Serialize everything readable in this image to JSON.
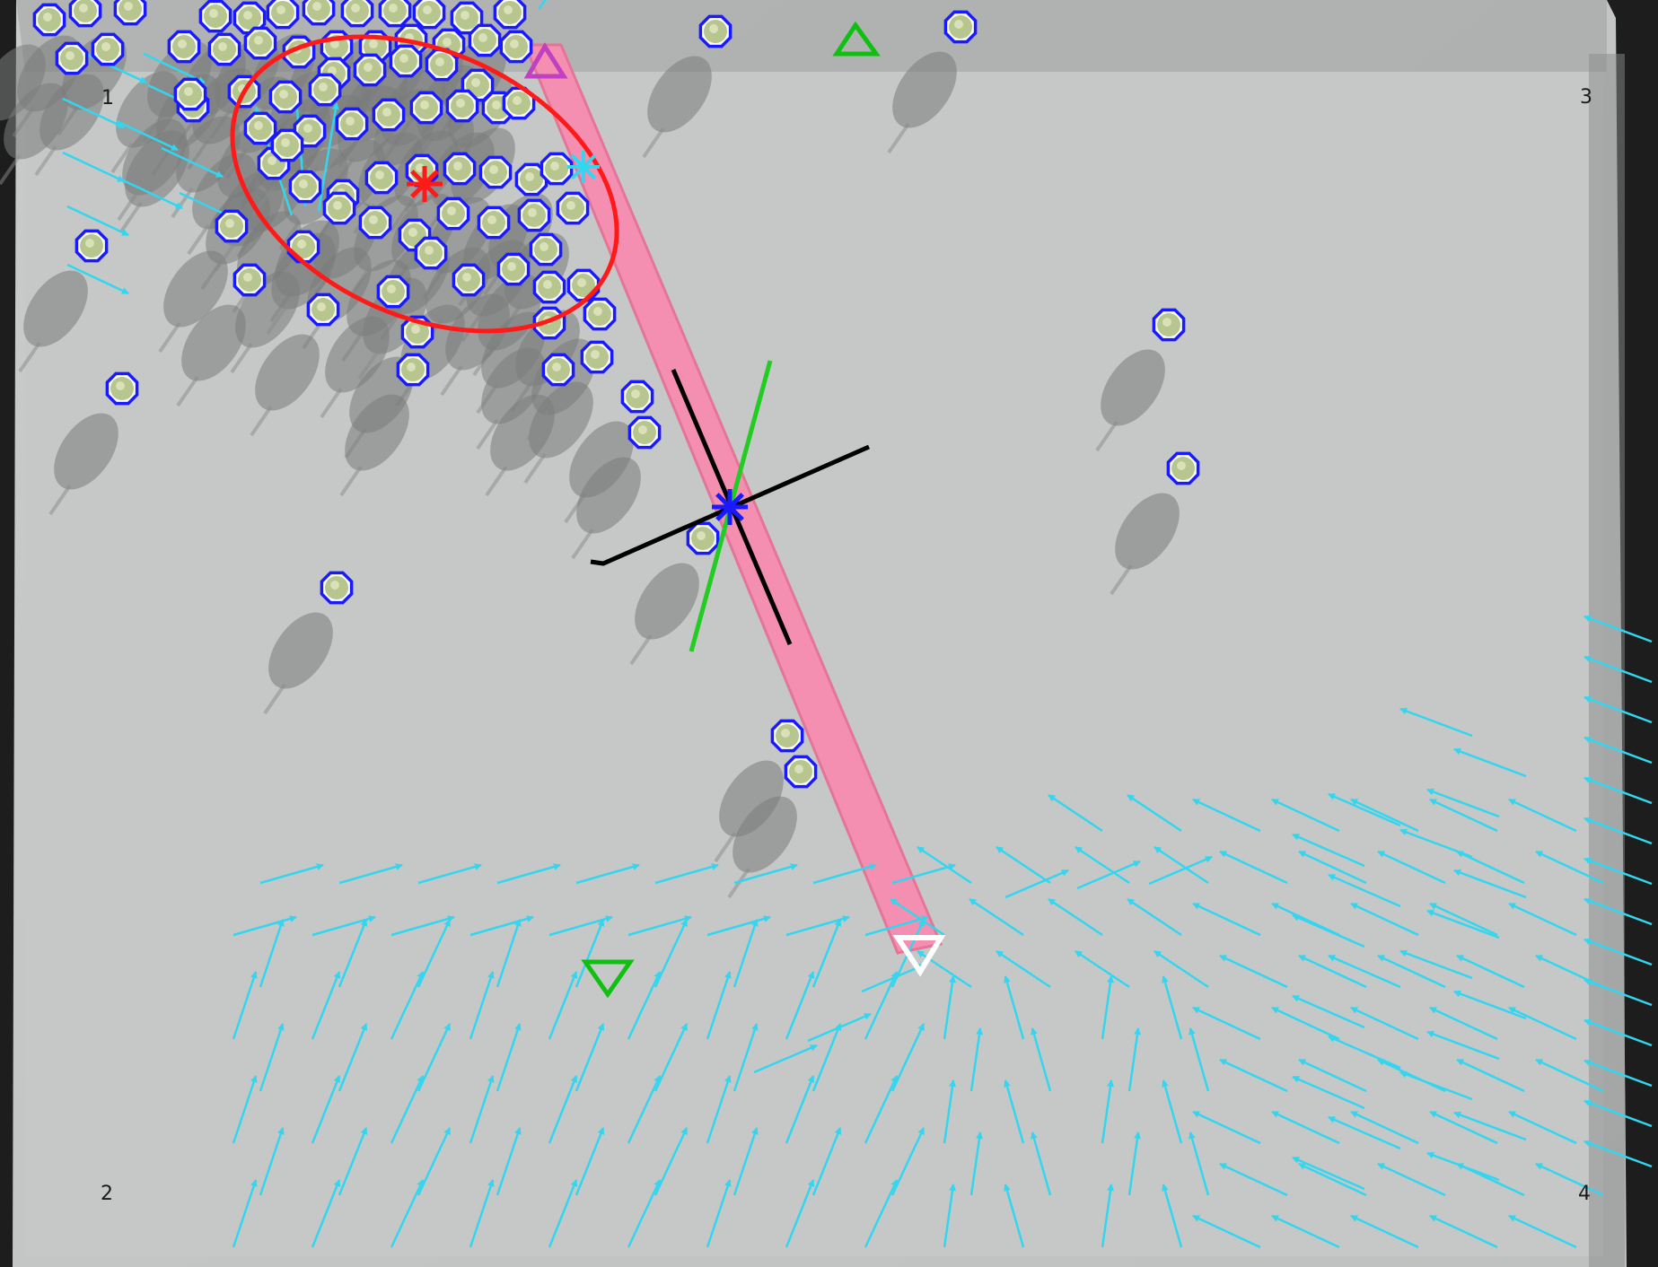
{
  "corner_labels": [
    "1",
    "3",
    "2",
    "4"
  ],
  "colors": {
    "frame": "#1d1d1d",
    "board": "#c3c5c5",
    "board_light": "#d2d4d4",
    "bar": "#f48fb1",
    "bar_edge": "#e57597",
    "particle_ring": "#1a1aff",
    "particle_fill": "#b7c58e",
    "shadow": "#7a7c7c",
    "arrow": "#33d6ef",
    "ellipse": "#ff1a1a",
    "goal_marker": "#10c010",
    "start_marker": "#c040c0",
    "end_marker": "#ffffff",
    "axis_black": "#000000",
    "axis_green": "#22cc22",
    "center_marker": "#1a1aff"
  },
  "icons": [
    "particle-icon",
    "goal-triangle-icon",
    "asterisk-icon",
    "crosshair-icon"
  ]
}
